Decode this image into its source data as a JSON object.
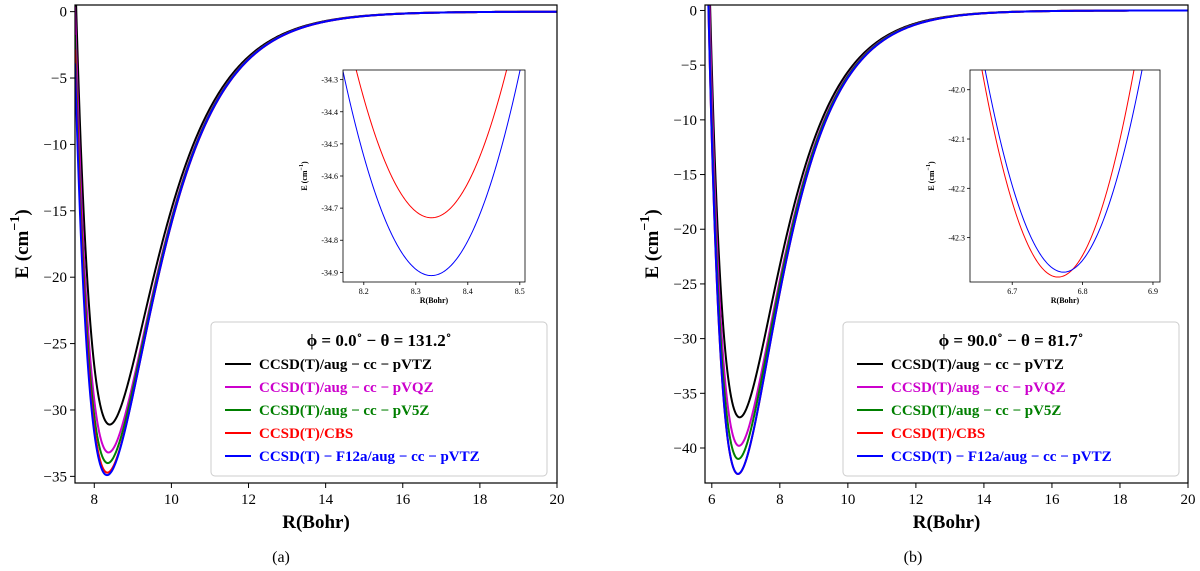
{
  "chart_data": [
    {
      "type": "line",
      "panel_caption": "(a)",
      "xlabel": "R(Bohr)",
      "ylabel_main": "E (cm",
      "ylabel_sup": "−1",
      "ylabel_close": ")",
      "xlim": [
        7.5,
        20
      ],
      "ylim": [
        -35.5,
        0.5
      ],
      "xticks": [
        8,
        10,
        12,
        14,
        16,
        18,
        20
      ],
      "xtick_labels": [
        "8",
        "10",
        "12",
        "14",
        "16",
        "18",
        "20"
      ],
      "yticks": [
        0,
        -5,
        -10,
        -15,
        -20,
        -25,
        -30,
        -35
      ],
      "ytick_labels": [
        "0",
        "−5",
        "−10",
        "−15",
        "−20",
        "−25",
        "−30",
        "−35"
      ],
      "legend_title": "ϕ = 0.0˚ − θ = 131.2˚",
      "legend_position": "lower-right",
      "series": [
        {
          "name": "CCSD(T)/aug − cc − pVTZ",
          "color": "#000000",
          "re": 8.4,
          "de": 31.1
        },
        {
          "name": "CCSD(T)/aug − cc − pVQZ",
          "color": "#cc00cc",
          "re": 8.37,
          "de": 33.2
        },
        {
          "name": "CCSD(T)/aug − cc − pV5Z",
          "color": "#007f00",
          "re": 8.35,
          "de": 34.0
        },
        {
          "name": "CCSD(T)/CBS",
          "color": "#ff0000",
          "re": 8.34,
          "de": 34.72
        },
        {
          "name": "CCSD(T) − F12a/aug − cc − pVTZ",
          "color": "#0000ff",
          "re": 8.33,
          "de": 34.91
        }
      ],
      "inset": {
        "xlabel": "R(Bohr)",
        "ylabel_main": "E (cm",
        "ylabel_sup": "−1",
        "ylabel_close": ")",
        "xlim": [
          8.16,
          8.51
        ],
        "ylim": [
          -34.93,
          -34.27
        ],
        "xticks": [
          8.2,
          8.3,
          8.4,
          8.5
        ],
        "xtick_labels": [
          "8.2",
          "8.3",
          "8.4",
          "8.5"
        ],
        "yticks": [
          -34.3,
          -34.4,
          -34.5,
          -34.6,
          -34.7,
          -34.8,
          -34.9
        ],
        "ytick_labels": [
          "-34.3",
          "-34.4",
          "-34.5",
          "-34.6",
          "-34.7",
          "-34.8",
          "-34.9"
        ],
        "curves": [
          {
            "color": "#ff0000",
            "min_x": 8.33,
            "min_y": -34.73,
            "curvature": 22.0
          },
          {
            "color": "#0000ff",
            "min_x": 8.33,
            "min_y": -34.91,
            "curvature": 22.0
          }
        ]
      }
    },
    {
      "type": "line",
      "panel_caption": "(b)",
      "xlabel": "R(Bohr)",
      "ylabel_main": "E (cm",
      "ylabel_sup": "−1",
      "ylabel_close": ")",
      "xlim": [
        5.8,
        20
      ],
      "ylim": [
        -43.2,
        0.5
      ],
      "xticks": [
        6,
        8,
        10,
        12,
        14,
        16,
        18,
        20
      ],
      "xtick_labels": [
        "6",
        "8",
        "10",
        "12",
        "14",
        "16",
        "18",
        "20"
      ],
      "yticks": [
        0,
        -5,
        -10,
        -15,
        -20,
        -25,
        -30,
        -35,
        -40
      ],
      "ytick_labels": [
        "0",
        "−5",
        "−10",
        "−15",
        "−20",
        "−25",
        "−30",
        "−35",
        "−40"
      ],
      "legend_title": "ϕ = 90.0˚ − θ = 81.7˚",
      "legend_position": "lower-right",
      "series": [
        {
          "name": "CCSD(T)/aug − cc − pVTZ",
          "color": "#000000",
          "re": 6.82,
          "de": 37.2
        },
        {
          "name": "CCSD(T)/aug − cc − pVQZ",
          "color": "#cc00cc",
          "re": 6.8,
          "de": 39.8
        },
        {
          "name": "CCSD(T)/aug − cc − pV5Z",
          "color": "#007f00",
          "re": 6.78,
          "de": 41.0
        },
        {
          "name": "CCSD(T)/CBS",
          "color": "#ff0000",
          "re": 6.77,
          "de": 42.38
        },
        {
          "name": "CCSD(T) − F12a/aug − cc − pVTZ",
          "color": "#0000ff",
          "re": 6.77,
          "de": 42.37
        }
      ],
      "inset": {
        "xlabel": "R(Bohr)",
        "ylabel_main": "E (cm",
        "ylabel_sup": "−1",
        "ylabel_close": ")",
        "xlim": [
          6.64,
          6.91
        ],
        "ylim": [
          -42.39,
          -41.96
        ],
        "xticks": [
          6.7,
          6.8,
          6.9
        ],
        "xtick_labels": [
          "6.7",
          "6.8",
          "6.9"
        ],
        "yticks": [
          -42.0,
          -42.1,
          -42.2,
          -42.3
        ],
        "ytick_labels": [
          "-42.0",
          "-42.1",
          "-42.2",
          "-42.3"
        ],
        "curves": [
          {
            "color": "#ff0000",
            "min_x": 6.765,
            "min_y": -42.38,
            "curvature": 36.0
          },
          {
            "color": "#0000ff",
            "min_x": 6.773,
            "min_y": -42.37,
            "curvature": 33.0
          }
        ]
      }
    }
  ]
}
